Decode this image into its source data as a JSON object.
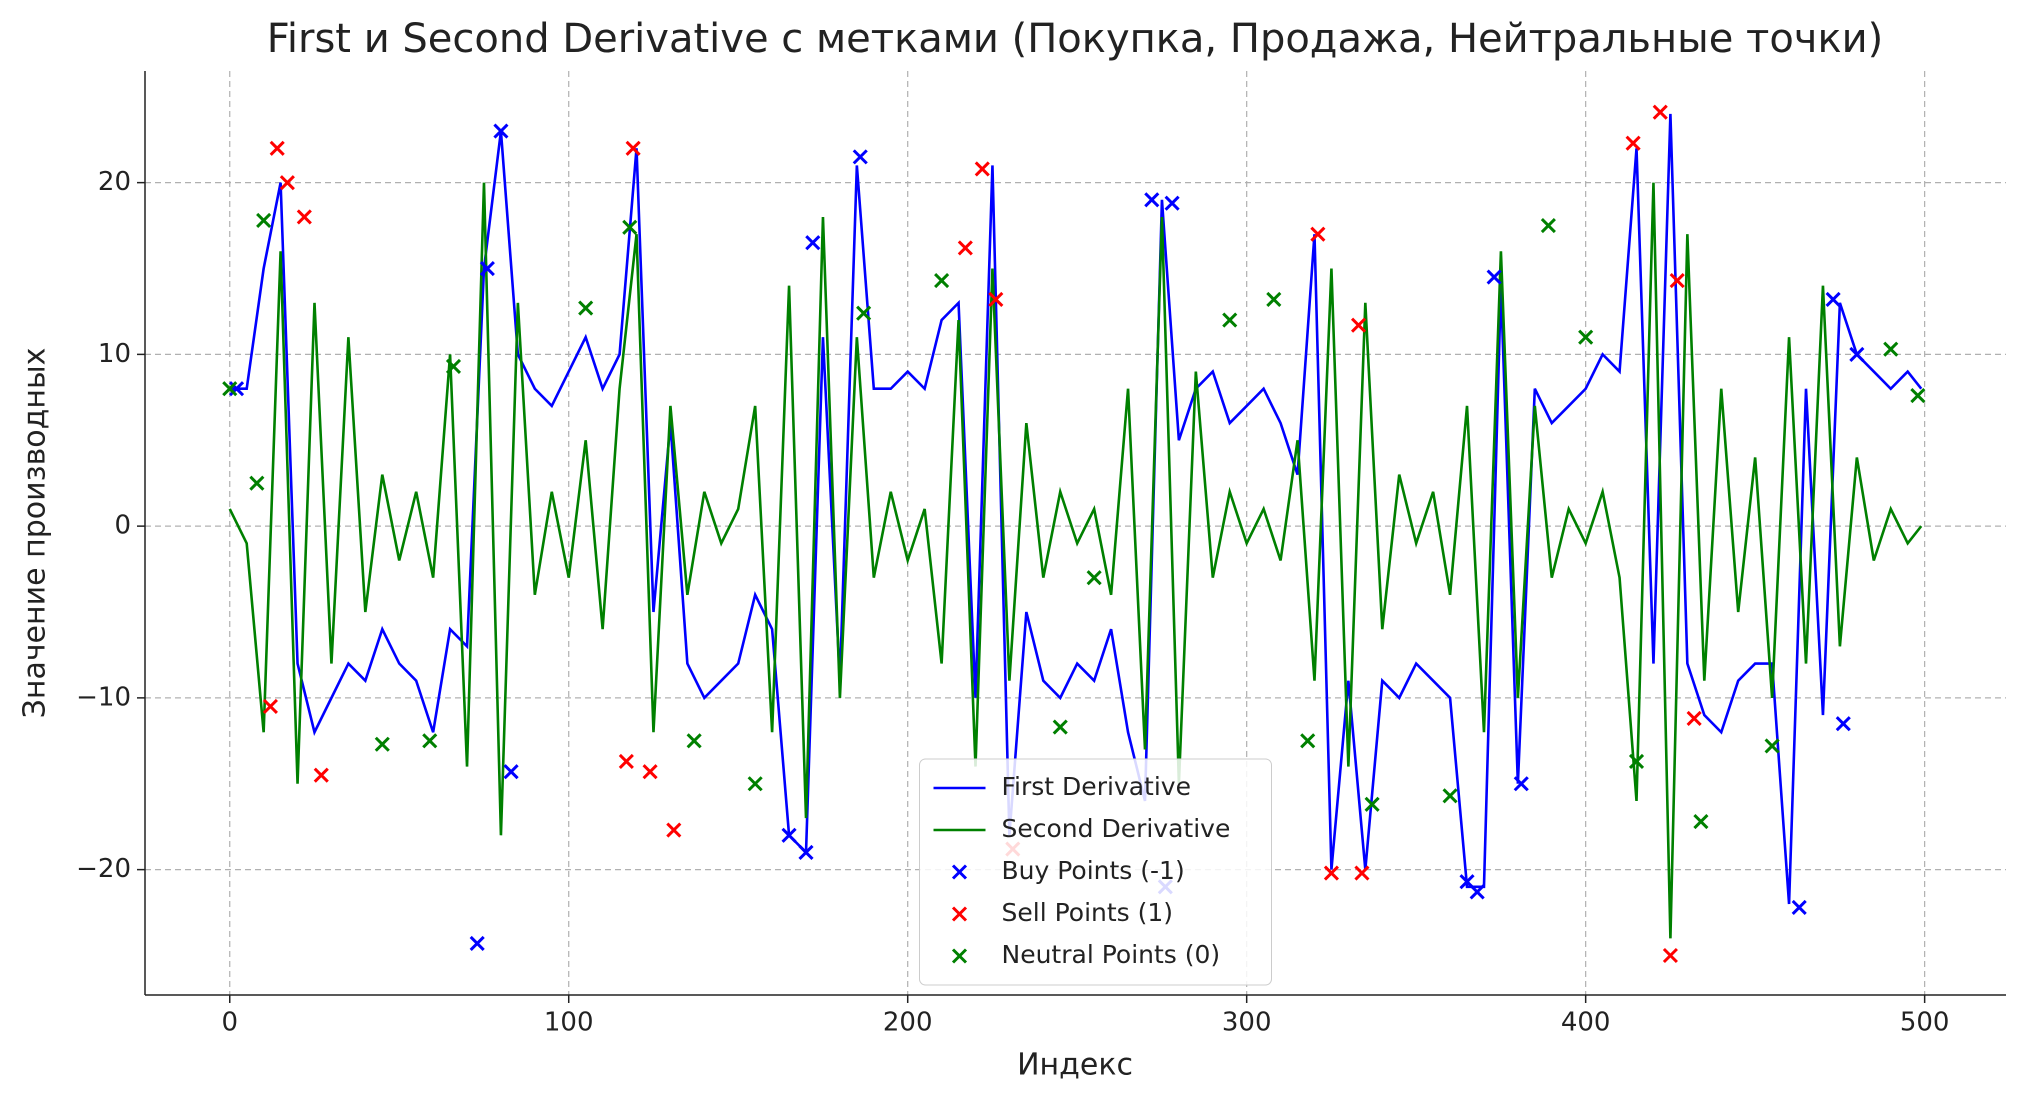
{
  "chart_data": {
    "type": "line",
    "title": "First и Second Derivative с метками (Покупка, Продажа, Нейтральные точки)",
    "xlabel": "Индекс",
    "ylabel": "Значение производных",
    "xlim": [
      -25,
      524
    ],
    "ylim": [
      -27.3,
      26.5
    ],
    "xticks": [
      0,
      100,
      200,
      300,
      400,
      500
    ],
    "yticks": [
      {
        "value": -20,
        "label": "−20"
      },
      {
        "value": -10,
        "label": "−10"
      },
      0,
      10,
      20
    ],
    "grid": true,
    "legend": "lower center",
    "series": [
      {
        "name": "First Derivative",
        "color": "#0000ff",
        "type": "line",
        "x": [
          0,
          5,
          10,
          15,
          20,
          25,
          30,
          35,
          40,
          45,
          50,
          55,
          60,
          65,
          70,
          75,
          80,
          85,
          90,
          95,
          100,
          105,
          110,
          115,
          120,
          125,
          130,
          135,
          140,
          145,
          150,
          155,
          160,
          165,
          170,
          175,
          180,
          185,
          190,
          195,
          200,
          205,
          210,
          215,
          220,
          225,
          230,
          235,
          240,
          245,
          250,
          255,
          260,
          265,
          270,
          275,
          280,
          285,
          290,
          295,
          300,
          305,
          310,
          315,
          320,
          325,
          330,
          335,
          340,
          345,
          350,
          355,
          360,
          365,
          370,
          375,
          380,
          385,
          390,
          395,
          400,
          405,
          410,
          415,
          420,
          425,
          430,
          435,
          440,
          445,
          450,
          455,
          460,
          465,
          470,
          475,
          480,
          485,
          490,
          495,
          499
        ],
        "values": [
          8,
          8,
          15,
          20,
          -8,
          -12,
          -10,
          -8,
          -9,
          -6,
          -8,
          -9,
          -12,
          -6,
          -7,
          15,
          23,
          10,
          8,
          7,
          9,
          11,
          8,
          10,
          22,
          -5,
          6,
          -8,
          -10,
          -9,
          -8,
          -4,
          -6,
          -18,
          -19,
          11,
          -9,
          21,
          8,
          8,
          9,
          8,
          12,
          13,
          -10,
          21,
          -18,
          -5,
          -9,
          -10,
          -8,
          -9,
          -6,
          -12,
          -16,
          19,
          5,
          8,
          9,
          6,
          7,
          8,
          6,
          3,
          17,
          -20,
          -9,
          -20,
          -9,
          -10,
          -8,
          -9,
          -10,
          -21,
          -21,
          14,
          -15,
          8,
          6,
          7,
          8,
          10,
          9,
          22,
          -8,
          24,
          -8,
          -11,
          -12,
          -9,
          -8,
          -8,
          -22,
          8,
          -11,
          13,
          10,
          9,
          8,
          9,
          8
        ]
      },
      {
        "name": "Second Derivative",
        "color": "#008000",
        "type": "line",
        "x": [
          0,
          5,
          10,
          15,
          20,
          25,
          30,
          35,
          40,
          45,
          50,
          55,
          60,
          65,
          70,
          75,
          80,
          85,
          90,
          95,
          100,
          105,
          110,
          115,
          120,
          125,
          130,
          135,
          140,
          145,
          150,
          155,
          160,
          165,
          170,
          175,
          180,
          185,
          190,
          195,
          200,
          205,
          210,
          215,
          220,
          225,
          230,
          235,
          240,
          245,
          250,
          255,
          260,
          265,
          270,
          275,
          280,
          285,
          290,
          295,
          300,
          305,
          310,
          315,
          320,
          325,
          330,
          335,
          340,
          345,
          350,
          355,
          360,
          365,
          370,
          375,
          380,
          385,
          390,
          395,
          400,
          405,
          410,
          415,
          420,
          425,
          430,
          435,
          440,
          445,
          450,
          455,
          460,
          465,
          470,
          475,
          480,
          485,
          490,
          495,
          499
        ],
        "values": [
          1,
          -1,
          -12,
          16,
          -15,
          13,
          -8,
          11,
          -5,
          3,
          -2,
          2,
          -3,
          10,
          -14,
          20,
          -18,
          13,
          -4,
          2,
          -3,
          5,
          -6,
          8,
          17,
          -12,
          7,
          -4,
          2,
          -1,
          1,
          7,
          -12,
          14,
          -17,
          18,
          -10,
          11,
          -3,
          2,
          -2,
          1,
          -8,
          12,
          -14,
          15,
          -9,
          6,
          -3,
          2,
          -1,
          1,
          -4,
          8,
          -13,
          18,
          -15,
          9,
          -3,
          2,
          -1,
          1,
          -2,
          5,
          -9,
          15,
          -14,
          13,
          -6,
          3,
          -1,
          2,
          -4,
          7,
          -12,
          16,
          -10,
          7,
          -3,
          1,
          -1,
          2,
          -3,
          -16,
          20,
          -24,
          17,
          -9,
          8,
          -5,
          4,
          -10,
          11,
          -8,
          14,
          -7,
          4,
          -2,
          1,
          -1,
          0
        ]
      },
      {
        "name": "Buy Points (-1)",
        "color": "#0000ff",
        "type": "scatter",
        "x": [
          2,
          73,
          76,
          80,
          83,
          165,
          170,
          172,
          186,
          272,
          276,
          278,
          365,
          368,
          373,
          381,
          463,
          473,
          476,
          480
        ],
        "values": [
          8,
          -24.3,
          15,
          23,
          -14.3,
          -18,
          -19,
          16.5,
          21.5,
          19,
          -21,
          18.8,
          -20.7,
          -21.3,
          14.5,
          -15,
          -22.2,
          13.2,
          -11.5,
          10
        ]
      },
      {
        "name": "Sell Points (1)",
        "color": "#ff0000",
        "type": "scatter",
        "x": [
          12,
          14,
          17,
          22,
          27,
          117,
          119,
          124,
          131,
          217,
          222,
          226,
          231,
          321,
          325,
          333,
          334,
          414,
          422,
          425,
          427,
          432
        ],
        "values": [
          -10.5,
          22,
          20,
          18,
          -14.5,
          -13.7,
          22,
          -14.3,
          -17.7,
          16.2,
          20.8,
          13.2,
          -18.8,
          17,
          -20.2,
          11.7,
          -20.2,
          22.3,
          24.1,
          -25,
          14.3,
          -11.2
        ]
      },
      {
        "name": "Neutral Points (0)",
        "color": "#008000",
        "type": "scatter",
        "x": [
          0,
          8,
          10,
          45,
          59,
          66,
          105,
          118,
          137,
          155,
          187,
          210,
          245,
          255,
          295,
          308,
          318,
          337,
          360,
          389,
          400,
          415,
          434,
          455,
          490,
          498
        ],
        "values": [
          8,
          2.5,
          17.8,
          -12.7,
          -12.5,
          9.3,
          12.7,
          17.4,
          -12.5,
          -15,
          12.4,
          14.3,
          -11.7,
          -3,
          12,
          13.2,
          -12.5,
          -16.2,
          -15.7,
          17.5,
          11,
          -13.7,
          -17.2,
          -12.8,
          10.3,
          7.6
        ]
      }
    ]
  }
}
